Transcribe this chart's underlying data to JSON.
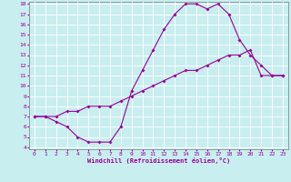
{
  "xlabel": "Windchill (Refroidissement éolien,°C)",
  "ylabel": "",
  "bg_color": "#c8eef0",
  "line_color": "#990099",
  "grid_color": "#ffffff",
  "xlim": [
    -0.5,
    23.5
  ],
  "ylim": [
    3.8,
    18.2
  ],
  "yticks": [
    4,
    5,
    6,
    7,
    8,
    9,
    10,
    11,
    12,
    13,
    14,
    15,
    16,
    17,
    18
  ],
  "xticks": [
    0,
    1,
    2,
    3,
    4,
    5,
    6,
    7,
    8,
    9,
    10,
    11,
    12,
    13,
    14,
    15,
    16,
    17,
    18,
    19,
    20,
    21,
    22,
    23
  ],
  "series1_x": [
    0,
    1,
    2,
    3,
    4,
    5,
    6,
    7,
    8,
    9,
    10,
    11,
    12,
    13,
    14,
    15,
    16,
    17,
    18,
    19,
    20,
    21,
    22,
    23
  ],
  "series1_y": [
    7.0,
    7.0,
    7.0,
    7.5,
    7.5,
    8.0,
    8.0,
    8.0,
    8.5,
    9.0,
    9.5,
    10.0,
    10.5,
    11.0,
    11.5,
    11.5,
    12.0,
    12.5,
    13.0,
    13.0,
    13.5,
    11.0,
    11.0,
    11.0
  ],
  "series2_x": [
    0,
    1,
    2,
    3,
    4,
    5,
    6,
    7,
    8,
    9,
    10,
    11,
    12,
    13,
    14,
    15,
    16,
    17,
    18,
    19,
    20,
    21,
    22,
    23
  ],
  "series2_y": [
    7.0,
    7.0,
    6.5,
    6.0,
    5.0,
    4.5,
    4.5,
    4.5,
    6.0,
    9.5,
    11.5,
    13.5,
    15.5,
    17.0,
    18.0,
    18.0,
    17.5,
    18.0,
    17.0,
    14.5,
    13.0,
    12.0,
    11.0,
    11.0
  ],
  "marker": "D",
  "markersize": 2.0,
  "linewidth": 0.8,
  "tick_fontsize": 4.5,
  "xlabel_fontsize": 5.0
}
